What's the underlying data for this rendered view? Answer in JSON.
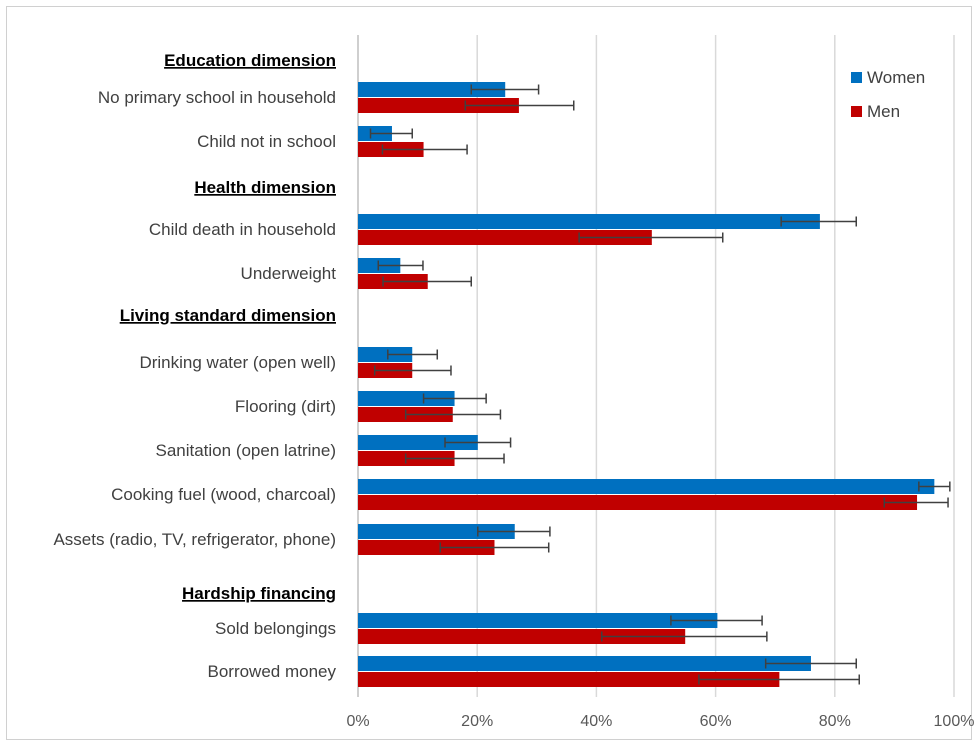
{
  "chart_data": {
    "type": "bar",
    "orientation": "horizontal",
    "title": "",
    "xlabel": "",
    "ylabel": "",
    "xlim": [
      0,
      100
    ],
    "x_ticks": [
      "0%",
      "20%",
      "40%",
      "60%",
      "80%",
      "100%"
    ],
    "grid": "vertical",
    "legend_position": "top-right",
    "series": [
      {
        "name": "Women",
        "color": "#0070c0"
      },
      {
        "name": "Men",
        "color": "#c00000"
      }
    ],
    "groups": [
      {
        "section": "Education dimension",
        "categories": [
          {
            "label": "No primary school in household",
            "women": 24.7,
            "women_err": [
              19.0,
              30.3
            ],
            "men": 27.0,
            "men_err": [
              18.0,
              36.2
            ]
          },
          {
            "label": "Child not in school",
            "women": 5.7,
            "women_err": [
              2.1,
              9.1
            ],
            "men": 11.0,
            "men_err": [
              4.1,
              18.3
            ]
          }
        ]
      },
      {
        "section": "Health dimension",
        "categories": [
          {
            "label": "Child death in household",
            "women": 77.5,
            "women_err": [
              71.0,
              83.6
            ],
            "men": 49.3,
            "men_err": [
              37.1,
              61.2
            ]
          },
          {
            "label": "Underweight",
            "women": 7.1,
            "women_err": [
              3.4,
              10.9
            ],
            "men": 11.7,
            "men_err": [
              4.2,
              19.0
            ]
          }
        ]
      },
      {
        "section": "Living standard dimension",
        "categories": [
          {
            "label": "Drinking water (open well)",
            "women": 9.1,
            "women_err": [
              5.0,
              13.3
            ],
            "men": 9.1,
            "men_err": [
              2.8,
              15.6
            ]
          },
          {
            "label": "Flooring (dirt)",
            "women": 16.2,
            "women_err": [
              11.0,
              21.5
            ],
            "men": 15.9,
            "men_err": [
              8.0,
              23.9
            ]
          },
          {
            "label": "Sanitation (open latrine)",
            "women": 20.1,
            "women_err": [
              14.6,
              25.6
            ],
            "men": 16.2,
            "men_err": [
              8.0,
              24.5
            ]
          },
          {
            "label": "Cooking fuel (wood, charcoal)",
            "women": 96.7,
            "women_err": [
              94.1,
              99.3
            ],
            "men": 93.8,
            "men_err": [
              88.3,
              99.0
            ]
          },
          {
            "label": "Assets (radio, TV, refrigerator, phone)",
            "women": 26.3,
            "women_err": [
              20.1,
              32.2
            ],
            "men": 22.9,
            "men_err": [
              13.8,
              32.0
            ]
          }
        ]
      },
      {
        "section": "Hardship financing",
        "categories": [
          {
            "label": "Sold belongings",
            "women": 60.3,
            "women_err": [
              52.5,
              67.8
            ],
            "men": 54.9,
            "men_err": [
              40.9,
              68.6
            ]
          },
          {
            "label": "Borrowed money",
            "women": 76.0,
            "women_err": [
              68.4,
              83.6
            ],
            "men": 70.7,
            "men_err": [
              57.2,
              84.1
            ]
          }
        ]
      }
    ]
  }
}
